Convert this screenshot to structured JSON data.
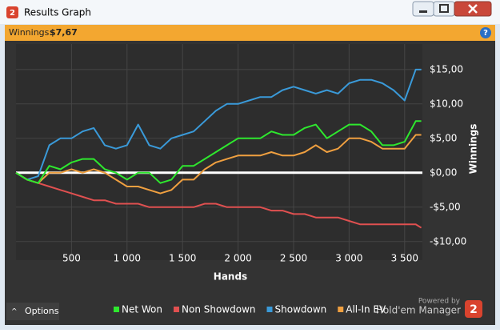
{
  "window": {
    "title": "Results Graph",
    "logo": "2",
    "info_label": "Winnings:",
    "info_value": "$7,67",
    "help": "?",
    "options": "Options",
    "powered_by": "Powered by",
    "brand": "Hold'em Manager"
  },
  "chart_data": {
    "type": "line",
    "x_label": "Hands",
    "y_label": "Winnings",
    "legend": "bottom",
    "grid": true,
    "x": [
      0,
      100,
      200,
      300,
      400,
      500,
      600,
      700,
      800,
      900,
      1000,
      1100,
      1200,
      1300,
      1400,
      1500,
      1600,
      1700,
      1800,
      1900,
      2000,
      2100,
      2200,
      2300,
      2400,
      2500,
      2600,
      2700,
      2800,
      2900,
      3000,
      3100,
      3200,
      3300,
      3400,
      3500,
      3600,
      3650
    ],
    "xlim": [
      0,
      3660
    ],
    "xticks": [
      500,
      {
        "value": 1000,
        "label": "1 000"
      },
      {
        "value": 1500,
        "label": "1 500"
      },
      {
        "value": 2000,
        "label": "2 000"
      },
      {
        "value": 2500,
        "label": "2 500"
      },
      {
        "value": 3000,
        "label": "3 000"
      },
      {
        "value": 3500,
        "label": "3 500"
      }
    ],
    "ylim": [
      -12.7,
      18.7
    ],
    "yticks": [
      {
        "value": -10,
        "label": "-$10,00"
      },
      {
        "value": -5,
        "label": "-$5,00"
      },
      {
        "value": 0,
        "label": "$0,00"
      },
      {
        "value": 5,
        "label": "$5,00"
      },
      {
        "value": 10,
        "label": "$10,00"
      },
      {
        "value": 15,
        "label": "$15,00"
      }
    ],
    "series": [
      {
        "name": "Net Won",
        "color": "#2ee82e",
        "values": [
          0,
          -1,
          -1.5,
          1,
          0.5,
          1.5,
          2,
          2,
          0.5,
          0,
          -1,
          0,
          0,
          -1.5,
          -1,
          1,
          1,
          2,
          3,
          4,
          5,
          5,
          5,
          6,
          5.5,
          5.5,
          6.5,
          7,
          5,
          6,
          7,
          7,
          6,
          4,
          4,
          4.5,
          7.5,
          7.5
        ]
      },
      {
        "name": "Non Showdown",
        "color": "#e05050",
        "values": [
          0,
          -1,
          -1.5,
          -2,
          -2.5,
          -3,
          -3.5,
          -4,
          -4,
          -4.5,
          -4.5,
          -4.5,
          -5,
          -5,
          -5,
          -5,
          -5,
          -4.5,
          -4.5,
          -5,
          -5,
          -5,
          -5,
          -5.5,
          -5.5,
          -6,
          -6,
          -6.5,
          -6.5,
          -6.5,
          -7,
          -7.5,
          -7.5,
          -7.5,
          -7.5,
          -7.5,
          -7.5,
          -8
        ]
      },
      {
        "name": "Showdown",
        "color": "#3a9ad9",
        "values": [
          0,
          -1,
          -0.5,
          4,
          5,
          5,
          6,
          6.5,
          4,
          3.5,
          4,
          7,
          4,
          3.5,
          5,
          5.5,
          6,
          7.5,
          9,
          10,
          10,
          10.5,
          11,
          11,
          12,
          12.5,
          12,
          11.5,
          12,
          11.5,
          13,
          13.5,
          13.5,
          13,
          12,
          10.5,
          15,
          15
        ]
      },
      {
        "name": "All-In EV",
        "color": "#f0a040",
        "values": [
          0,
          -1,
          -1.5,
          0,
          0,
          0.5,
          0,
          0.5,
          0,
          -1,
          -2,
          -2,
          -2.5,
          -3,
          -2.5,
          -1,
          -1,
          0.5,
          1.5,
          2,
          2.5,
          2.5,
          2.5,
          3,
          2.5,
          2.5,
          3,
          4,
          3,
          3.5,
          5,
          5,
          4.5,
          3.5,
          3.5,
          3.5,
          5.5,
          5.5
        ]
      }
    ]
  }
}
